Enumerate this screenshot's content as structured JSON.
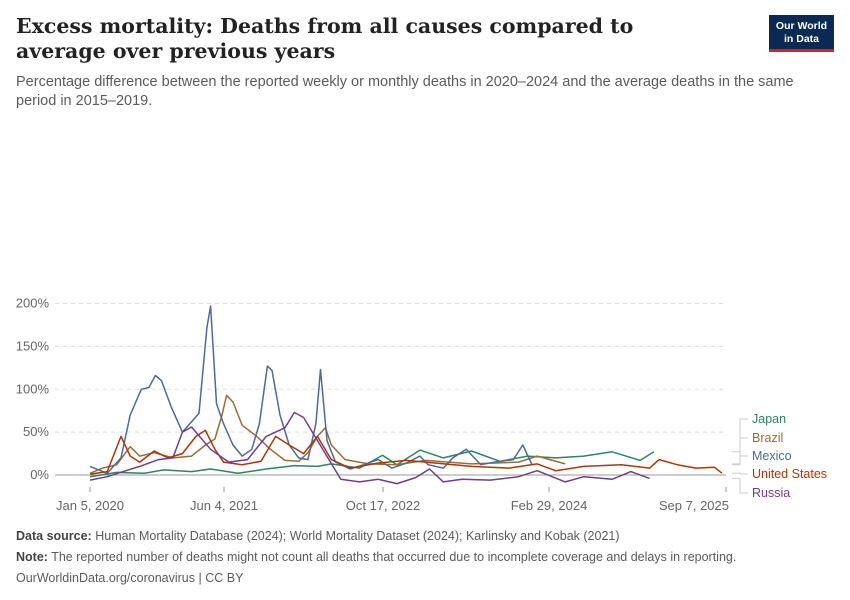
{
  "header": {
    "title": "Excess mortality: Deaths from all causes compared to average over previous years",
    "subtitle": "Percentage difference between the reported weekly or monthly deaths in 2020–2024 and the average deaths in the same period in 2015–2019."
  },
  "logo": {
    "line1": "Our World",
    "line2": "in Data",
    "bg": "#0a2a54",
    "accent": "#ce261e"
  },
  "footer": {
    "source_label": "Data source:",
    "source_text": "Human Mortality Database (2024); World Mortality Dataset (2024); Karlinsky and Kobak (2021)",
    "note_label": "Note:",
    "note_text": "The reported number of deaths might not count all deaths that occurred due to incomplete coverage and delays in reporting.",
    "credit": "OurWorldinData.org/coronavirus | CC BY"
  },
  "chart_data": {
    "type": "line",
    "title": "Excess mortality: Deaths from all causes compared to average over previous years",
    "x_ticks": [
      "Jan 5, 2020",
      "Jun 4, 2021",
      "Oct 17, 2022",
      "Feb 29, 2024",
      "Sep 7, 2025"
    ],
    "x_range": [
      "2020-01-05",
      "2025-09-07"
    ],
    "y_ticks": [
      "0%",
      "50%",
      "100%",
      "150%",
      "200%"
    ],
    "y_tick_values": [
      0,
      50,
      100,
      150,
      200
    ],
    "ylim": [
      -10,
      200
    ],
    "grid": true,
    "legend": "right (line end labels)",
    "series": [
      {
        "name": "Japan",
        "color": "#2c8465",
        "points": [
          [
            "2020-01-05",
            -2
          ],
          [
            "2020-04-01",
            3
          ],
          [
            "2020-07-01",
            2
          ],
          [
            "2020-09-01",
            6
          ],
          [
            "2020-12-01",
            4
          ],
          [
            "2021-02-01",
            7
          ],
          [
            "2021-05-01",
            2
          ],
          [
            "2021-08-01",
            7
          ],
          [
            "2021-11-01",
            11
          ],
          [
            "2022-01-15",
            10
          ],
          [
            "2022-03-01",
            13
          ],
          [
            "2022-06-01",
            8
          ],
          [
            "2022-08-15",
            23
          ],
          [
            "2022-10-01",
            12
          ],
          [
            "2022-12-15",
            29
          ],
          [
            "2023-03-01",
            20
          ],
          [
            "2023-06-01",
            28
          ],
          [
            "2023-09-01",
            16
          ],
          [
            "2023-12-01",
            22
          ],
          [
            "2024-03-01",
            20
          ],
          [
            "2024-06-01",
            22
          ],
          [
            "2024-09-01",
            27
          ],
          [
            "2024-12-01",
            17
          ],
          [
            "2025-01-15",
            27
          ]
        ]
      },
      {
        "name": "Brazil",
        "color": "#996d39",
        "points": [
          [
            "2020-01-05",
            2
          ],
          [
            "2020-02-15",
            8
          ],
          [
            "2020-04-01",
            12
          ],
          [
            "2020-05-15",
            33
          ],
          [
            "2020-06-15",
            22
          ],
          [
            "2020-08-01",
            26
          ],
          [
            "2020-10-01",
            20
          ],
          [
            "2020-12-01",
            22
          ],
          [
            "2021-01-15",
            35
          ],
          [
            "2021-02-15",
            42
          ],
          [
            "2021-03-10",
            70
          ],
          [
            "2021-03-25",
            93
          ],
          [
            "2021-04-15",
            85
          ],
          [
            "2021-05-15",
            58
          ],
          [
            "2021-07-01",
            45
          ],
          [
            "2021-08-15",
            30
          ],
          [
            "2021-10-01",
            17
          ],
          [
            "2021-11-15",
            16
          ],
          [
            "2021-12-15",
            26
          ],
          [
            "2022-01-15",
            45
          ],
          [
            "2022-02-10",
            55
          ],
          [
            "2022-03-01",
            35
          ],
          [
            "2022-04-15",
            18
          ],
          [
            "2022-07-01",
            13
          ],
          [
            "2022-10-01",
            12
          ],
          [
            "2023-01-01",
            17
          ],
          [
            "2023-06-01",
            13
          ],
          [
            "2023-11-01",
            15
          ],
          [
            "2024-01-01",
            22
          ],
          [
            "2024-04-01",
            13
          ]
        ]
      },
      {
        "name": "Mexico",
        "color": "#4c6a9c",
        "points": [
          [
            "2020-01-05",
            10
          ],
          [
            "2020-03-01",
            2
          ],
          [
            "2020-04-15",
            20
          ],
          [
            "2020-05-15",
            70
          ],
          [
            "2020-06-20",
            100
          ],
          [
            "2020-07-15",
            102
          ],
          [
            "2020-08-05",
            116
          ],
          [
            "2020-08-25",
            110
          ],
          [
            "2020-09-25",
            80
          ],
          [
            "2020-11-01",
            50
          ],
          [
            "2020-12-01",
            62
          ],
          [
            "2020-12-25",
            72
          ],
          [
            "2021-01-20",
            172
          ],
          [
            "2021-02-01",
            197
          ],
          [
            "2021-02-20",
            83
          ],
          [
            "2021-03-15",
            60
          ],
          [
            "2021-04-15",
            35
          ],
          [
            "2021-05-15",
            22
          ],
          [
            "2021-06-15",
            30
          ],
          [
            "2021-07-10",
            60
          ],
          [
            "2021-08-05",
            127
          ],
          [
            "2021-08-20",
            122
          ],
          [
            "2021-09-15",
            70
          ],
          [
            "2021-10-15",
            35
          ],
          [
            "2021-11-15",
            20
          ],
          [
            "2021-12-15",
            18
          ],
          [
            "2022-01-10",
            60
          ],
          [
            "2022-01-25",
            123
          ],
          [
            "2022-02-15",
            40
          ],
          [
            "2022-03-15",
            15
          ],
          [
            "2022-05-01",
            7
          ],
          [
            "2022-06-15",
            12
          ],
          [
            "2022-08-01",
            18
          ],
          [
            "2022-09-15",
            8
          ],
          [
            "2022-11-01",
            14
          ],
          [
            "2022-12-15",
            22
          ],
          [
            "2023-01-10",
            12
          ],
          [
            "2023-03-01",
            8
          ],
          [
            "2023-04-01",
            20
          ],
          [
            "2023-05-15",
            30
          ],
          [
            "2023-07-01",
            12
          ],
          [
            "2023-08-15",
            15
          ],
          [
            "2023-10-15",
            18
          ],
          [
            "2023-11-15",
            35
          ],
          [
            "2023-12-15",
            12
          ]
        ]
      },
      {
        "name": "United States",
        "color": "#b13507",
        "points": [
          [
            "2020-01-05",
            1
          ],
          [
            "2020-03-01",
            4
          ],
          [
            "2020-04-15",
            45
          ],
          [
            "2020-05-15",
            22
          ],
          [
            "2020-06-15",
            15
          ],
          [
            "2020-08-01",
            28
          ],
          [
            "2020-09-15",
            20
          ],
          [
            "2020-11-01",
            25
          ],
          [
            "2020-12-15",
            45
          ],
          [
            "2021-01-15",
            52
          ],
          [
            "2021-02-15",
            30
          ],
          [
            "2021-03-15",
            15
          ],
          [
            "2021-05-15",
            12
          ],
          [
            "2021-07-15",
            16
          ],
          [
            "2021-09-01",
            45
          ],
          [
            "2021-10-15",
            35
          ],
          [
            "2021-12-01",
            25
          ],
          [
            "2022-01-15",
            45
          ],
          [
            "2022-03-01",
            18
          ],
          [
            "2022-05-01",
            8
          ],
          [
            "2022-08-01",
            14
          ],
          [
            "2022-11-01",
            17
          ],
          [
            "2023-02-01",
            14
          ],
          [
            "2023-06-01",
            10
          ],
          [
            "2023-10-01",
            8
          ],
          [
            "2024-01-01",
            13
          ],
          [
            "2024-03-01",
            5
          ],
          [
            "2024-06-01",
            10
          ],
          [
            "2024-10-01",
            12
          ],
          [
            "2025-01-01",
            8
          ],
          [
            "2025-02-01",
            18
          ],
          [
            "2025-04-01",
            12
          ],
          [
            "2025-06-01",
            8
          ],
          [
            "2025-08-01",
            9
          ],
          [
            "2025-08-25",
            2
          ]
        ]
      },
      {
        "name": "Russia",
        "color": "#6d3e91",
        "points": [
          [
            "2020-01-05",
            -6
          ],
          [
            "2020-03-01",
            -2
          ],
          [
            "2020-05-01",
            5
          ],
          [
            "2020-06-15",
            10
          ],
          [
            "2020-08-15",
            18
          ],
          [
            "2020-10-01",
            20
          ],
          [
            "2020-11-01",
            50
          ],
          [
            "2020-12-01",
            56
          ],
          [
            "2021-02-01",
            30
          ],
          [
            "2021-04-01",
            15
          ],
          [
            "2021-06-01",
            18
          ],
          [
            "2021-08-01",
            45
          ],
          [
            "2021-10-01",
            55
          ],
          [
            "2021-11-01",
            73
          ],
          [
            "2021-12-01",
            67
          ],
          [
            "2022-02-01",
            30
          ],
          [
            "2022-04-01",
            -5
          ],
          [
            "2022-06-01",
            -8
          ],
          [
            "2022-08-01",
            -5
          ],
          [
            "2022-10-01",
            -10
          ],
          [
            "2022-12-01",
            -3
          ],
          [
            "2023-01-15",
            7
          ],
          [
            "2023-03-01",
            -8
          ],
          [
            "2023-05-01",
            -5
          ],
          [
            "2023-08-01",
            -6
          ],
          [
            "2023-11-01",
            -2
          ],
          [
            "2024-01-01",
            5
          ],
          [
            "2024-04-01",
            -8
          ],
          [
            "2024-06-01",
            -2
          ],
          [
            "2024-09-01",
            -5
          ],
          [
            "2024-11-01",
            4
          ],
          [
            "2025-01-01",
            -4
          ]
        ]
      }
    ]
  }
}
